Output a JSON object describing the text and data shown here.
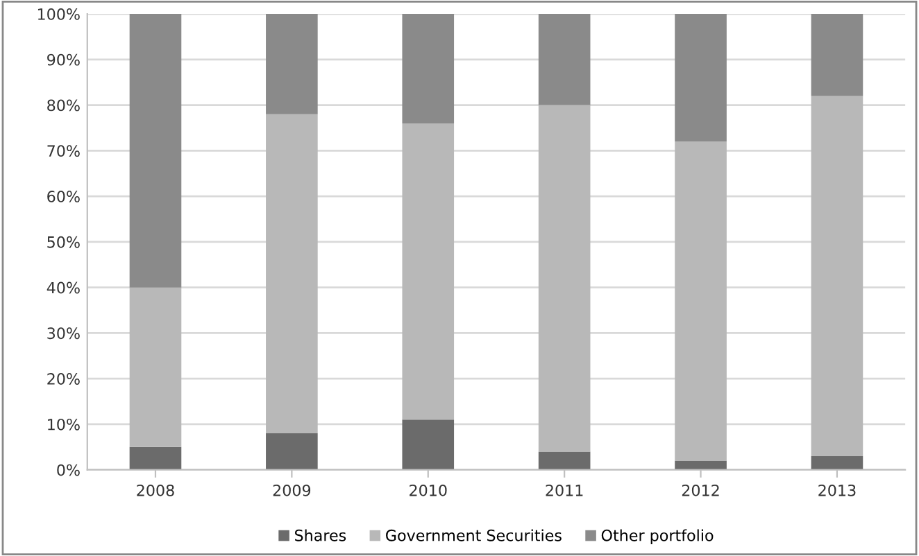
{
  "chart_data": {
    "type": "bar",
    "stacked": true,
    "categories": [
      "2008",
      "2009",
      "2010",
      "2011",
      "2012",
      "2013"
    ],
    "series": [
      {
        "name": "Shares",
        "color": "#6b6b6b",
        "values": [
          5,
          8,
          11,
          4,
          2,
          3
        ]
      },
      {
        "name": "Government Securities",
        "color": "#b8b8b8",
        "values": [
          35,
          70,
          65,
          76,
          70,
          79
        ]
      },
      {
        "name": "Other portfolio",
        "color": "#8a8a8a",
        "values": [
          60,
          22,
          24,
          20,
          28,
          18
        ]
      }
    ],
    "ylim": [
      0,
      100
    ],
    "yticks": [
      {
        "value": 0,
        "label": "0%"
      },
      {
        "value": 10,
        "label": "10%"
      },
      {
        "value": 20,
        "label": "20%"
      },
      {
        "value": 30,
        "label": "30%"
      },
      {
        "value": 40,
        "label": "40%"
      },
      {
        "value": 50,
        "label": "50%"
      },
      {
        "value": 60,
        "label": "60%"
      },
      {
        "value": 70,
        "label": "70%"
      },
      {
        "value": 80,
        "label": "80%"
      },
      {
        "value": 90,
        "label": "90%"
      },
      {
        "value": 100,
        "label": "100%"
      }
    ],
    "grid": "y",
    "legend": "bottom"
  }
}
